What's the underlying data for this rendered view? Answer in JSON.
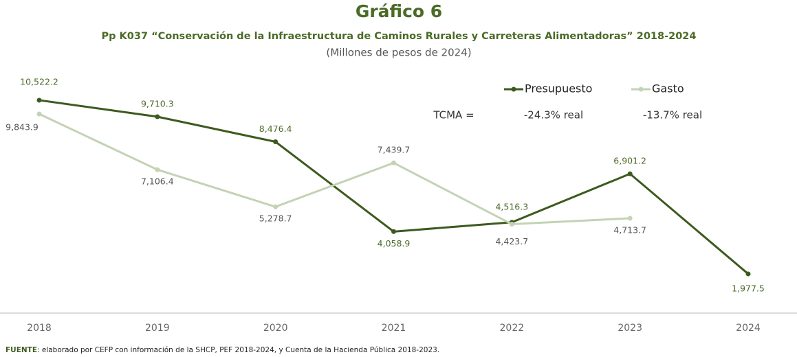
{
  "chart_data": {
    "type": "line",
    "title": "Gráfico 6",
    "subtitle": "Pp K037 “Conservación de la Infraestructura de Caminos Rurales y Carreteras Alimentadoras” 2018-2024",
    "units": "(Millones de pesos de 2024)",
    "categories": [
      "2018",
      "2019",
      "2020",
      "2021",
      "2022",
      "2023",
      "2024"
    ],
    "series": [
      {
        "name": "Presupuesto",
        "color": "#3d5a1e",
        "values": [
          10522.2,
          9710.3,
          8476.4,
          4058.9,
          4516.3,
          6901.2,
          1977.5
        ],
        "value_labels": [
          "10,522.2",
          "9,710.3",
          "8,476.4",
          "4,058.9",
          "4,516.3",
          "6,901.2",
          "1,977.5"
        ]
      },
      {
        "name": "Gasto",
        "color": "#c3d3b5",
        "values": [
          9843.9,
          7106.4,
          5278.7,
          7439.7,
          4423.7,
          4713.7,
          null
        ],
        "value_labels": [
          "9,843.9",
          "7,106.4",
          "5,278.7",
          "7,439.7",
          "4,423.7",
          "4,713.7",
          null
        ]
      }
    ],
    "tcma_label": "TCMA =",
    "tcma": [
      "-24.3% real",
      "-13.7% real"
    ],
    "ylim": [
      0,
      11500
    ],
    "source_label": "FUENTE",
    "source": ": elaborado por CEFP con información de la SHCP, PEF 2018-2024, y Cuenta de la Hacienda Pública 2018-2023."
  }
}
